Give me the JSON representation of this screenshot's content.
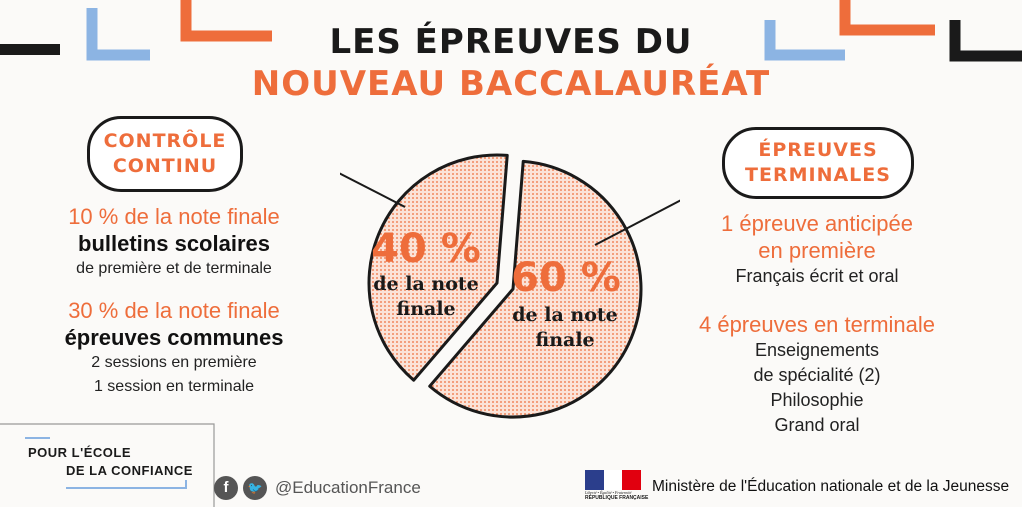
{
  "header": {
    "title_line1": "LES ÉPREUVES DU",
    "title_line2": "NOUVEAU BACCALAURÉAT"
  },
  "left": {
    "pill_line1": "CONTRÔLE",
    "pill_line2": "CONTINU",
    "block1_pct": "10 % de la note finale",
    "block1_title": "bulletins scolaires",
    "block1_detail": "de première et de terminale",
    "block2_pct": "30 % de la note finale",
    "block2_title": "épreuves communes",
    "block2_detail1": "2 sessions en première",
    "block2_detail2": "1 session en terminale"
  },
  "right": {
    "pill_line1": "ÉPREUVES",
    "pill_line2": "TERMINALES",
    "block1_title_line1": "1 épreuve anticipée",
    "block1_title_line2": "en première",
    "block1_detail": "Français écrit et oral",
    "block2_title": "4 épreuves en terminale",
    "block2_items": [
      "Enseignements",
      "de spécialité (2)",
      "Philosophie",
      "Grand oral"
    ]
  },
  "chart_data": {
    "type": "pie",
    "slices": [
      {
        "label": "Contrôle continu",
        "value": 40,
        "pct_text": "40 %",
        "caption_line1": "de la note",
        "caption_line2": "finale"
      },
      {
        "label": "Épreuves terminales",
        "value": 60,
        "pct_text": "60 %",
        "caption_line1": "de la note",
        "caption_line2": "finale"
      }
    ]
  },
  "footer": {
    "brand_line1": "POUR L'ÉCOLE",
    "brand_line2": "DE LA CONFIANCE",
    "social_handle": "@EducationFrance",
    "ministry": "Ministère de l'Éducation nationale et de la Jeunesse",
    "republic_label": "RÉPUBLIQUE FRANÇAISE",
    "motto": "Liberté • Égalité • Fraternité",
    "icons": [
      "facebook-icon",
      "twitter-icon",
      "marianne-logo"
    ]
  },
  "colors": {
    "accent": "#ee6d3b",
    "blue": "#8cb4e3",
    "dark": "#1a1a1a"
  }
}
